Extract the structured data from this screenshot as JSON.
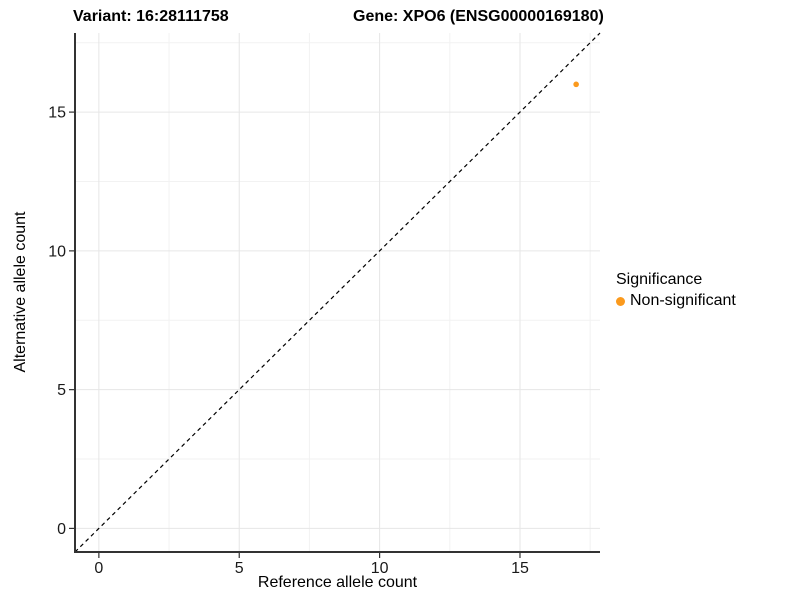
{
  "chart_data": {
    "type": "scatter",
    "titles": {
      "left": "Variant: 16:28111758",
      "right": "Gene: XPO6 (ENSG00000169180)"
    },
    "xlabel": "Reference allele count",
    "ylabel": "Alternative allele count",
    "xlim": [
      -0.85,
      17.85
    ],
    "ylim": [
      -0.85,
      17.85
    ],
    "x_ticks": [
      0,
      5,
      10,
      15
    ],
    "y_ticks": [
      0,
      5,
      10,
      15
    ],
    "x_minor_ticks": [
      2.5,
      7.5,
      12.5,
      17.5
    ],
    "y_minor_ticks": [
      2.5,
      7.5,
      12.5,
      17.5
    ],
    "grid": "major+minor, light gray on white",
    "series": [
      {
        "name": "Non-significant",
        "color": "#FB9A1D",
        "points": [
          {
            "x": 17,
            "y": 16
          }
        ]
      }
    ],
    "reference_line": {
      "kind": "identity y = x",
      "style": "dashed",
      "color": "#000000"
    },
    "legend": {
      "title": "Significance",
      "position": "right",
      "entries": [
        {
          "label": "Non-significant",
          "color": "#FB9A1D"
        }
      ]
    },
    "style_colors": {
      "axis_line": "#333333",
      "tick_text": "#1a1a1a",
      "major_grid": "#E6E6E6",
      "minor_grid": "#F2F2F2"
    }
  }
}
